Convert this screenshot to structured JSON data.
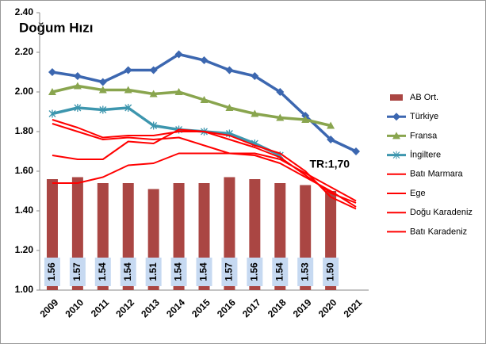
{
  "chart_data": {
    "type": "combo",
    "title": "Doğum Hızı",
    "categories": [
      "2009",
      "2010",
      "2011",
      "2012",
      "2013",
      "2014",
      "2015",
      "2016",
      "2017",
      "2018",
      "2019",
      "2020",
      "2021"
    ],
    "ylim": [
      1.0,
      2.4
    ],
    "yticks": [
      {
        "value": 1.0,
        "label": "1.00"
      },
      {
        "value": 1.2,
        "label": "1.20"
      },
      {
        "value": 1.4,
        "label": "1.40"
      },
      {
        "value": 1.6,
        "label": "1.60"
      },
      {
        "value": 1.8,
        "label": "1.80"
      },
      {
        "value": 2.0,
        "label": "2.00"
      },
      {
        "value": 2.2,
        "label": "2.20"
      },
      {
        "value": 2.4,
        "label": "2.40"
      }
    ],
    "grid": false,
    "legend": "right",
    "series": [
      {
        "name": "AB Ort.",
        "type": "bar",
        "color": "#aa4643",
        "values": [
          1.56,
          1.57,
          1.54,
          1.54,
          1.51,
          1.54,
          1.54,
          1.57,
          1.56,
          1.54,
          1.53,
          1.5,
          null
        ],
        "value_labels": [
          "1.56",
          "1.57",
          "1.54",
          "1.54",
          "1.51",
          "1.54",
          "1.54",
          "1.57",
          "1.56",
          "1.54",
          "1.53",
          "1.50",
          null
        ]
      },
      {
        "name": "Türkiye",
        "type": "line",
        "marker": "diamond",
        "color": "#3c67b0",
        "values": [
          2.1,
          2.08,
          2.05,
          2.11,
          2.11,
          2.19,
          2.16,
          2.11,
          2.08,
          2.0,
          1.88,
          1.76,
          1.7
        ]
      },
      {
        "name": "Fransa",
        "type": "line",
        "marker": "triangle",
        "color": "#89a54e",
        "values": [
          2.0,
          2.03,
          2.01,
          2.01,
          1.99,
          2.0,
          1.96,
          1.92,
          1.89,
          1.87,
          1.86,
          1.83,
          null
        ]
      },
      {
        "name": "İngiltere",
        "type": "line",
        "marker": "star",
        "color": "#3d96ae",
        "values": [
          1.89,
          1.92,
          1.91,
          1.92,
          1.83,
          1.81,
          1.8,
          1.79,
          1.74,
          1.68,
          null,
          null,
          null
        ]
      },
      {
        "name": "Batı Marmara",
        "type": "line",
        "marker": "none",
        "color": "#ff0000",
        "values": [
          1.68,
          1.66,
          1.66,
          1.75,
          1.74,
          1.81,
          1.8,
          1.76,
          1.72,
          1.67,
          1.58,
          1.49,
          1.44
        ]
      },
      {
        "name": "Ege",
        "type": "line",
        "marker": "none",
        "color": "#ff0000",
        "values": [
          1.84,
          1.8,
          1.76,
          1.77,
          1.76,
          1.77,
          1.73,
          1.69,
          1.68,
          1.64,
          1.57,
          1.5,
          1.42
        ]
      },
      {
        "name": "Doğu Karadeniz",
        "type": "line",
        "marker": "none",
        "color": "#ff0000",
        "values": [
          1.54,
          1.54,
          1.57,
          1.63,
          1.64,
          1.69,
          1.69,
          1.69,
          1.69,
          1.66,
          1.59,
          1.52,
          1.45
        ]
      },
      {
        "name": "Batı Karadeniz",
        "type": "line",
        "marker": "none",
        "color": "#ff0000",
        "values": [
          1.86,
          1.82,
          1.77,
          1.78,
          1.78,
          1.8,
          1.8,
          1.78,
          1.73,
          1.69,
          1.6,
          1.47,
          1.41
        ]
      }
    ],
    "annotations": [
      {
        "text": "TR:1,70",
        "series": 1,
        "index": 12
      }
    ]
  }
}
